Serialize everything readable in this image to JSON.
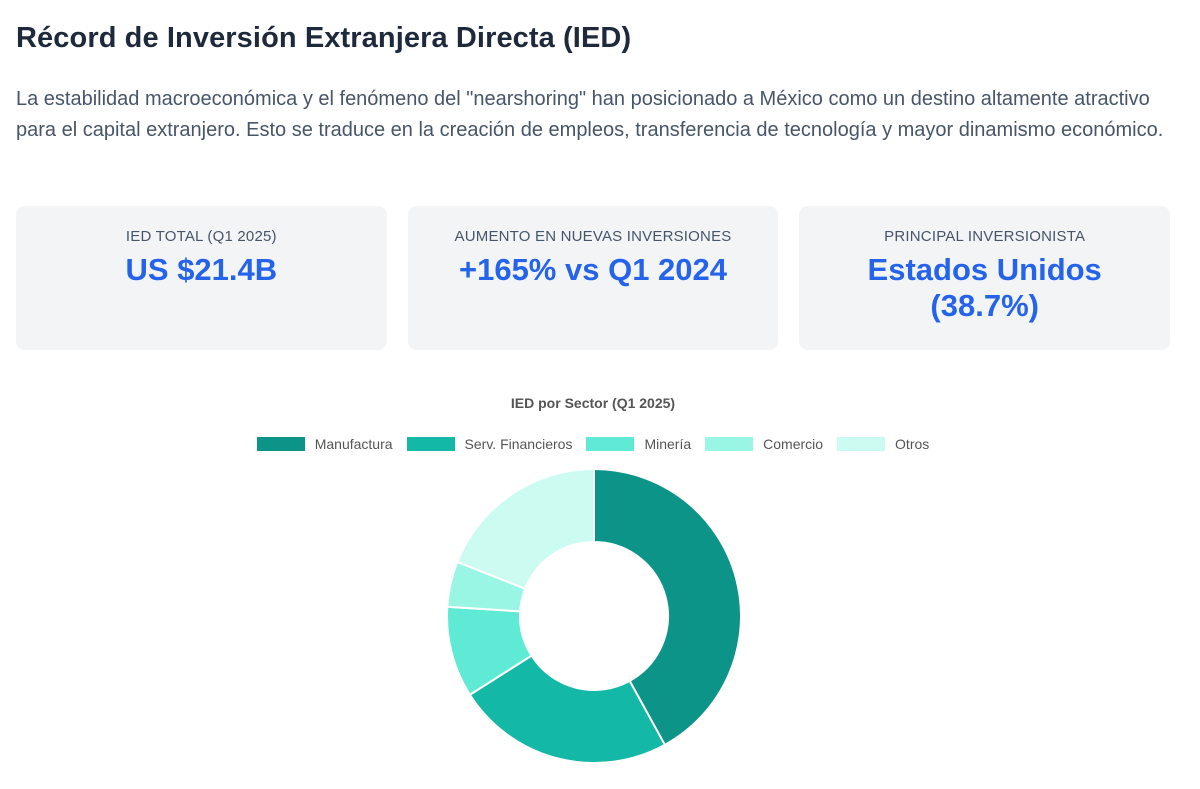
{
  "header": {
    "title": "Récord de Inversión Extranjera Directa (IED)",
    "description": "La estabilidad macroeconómica y el fenómeno del \"nearshoring\" han posicionado a México como un destino altamente atractivo para el capital extranjero. Esto se traduce en la creación de empleos, transferencia de tecnología y mayor dinamismo económico."
  },
  "stats": [
    {
      "label": "IED TOTAL (Q1 2025)",
      "value": "US $21.4B"
    },
    {
      "label": "AUMENTO EN NUEVAS INVERSIONES",
      "value": "+165% vs Q1 2024"
    },
    {
      "label": "PRINCIPAL INVERSIONISTA",
      "value": "Estados Unidos (38.7%)"
    }
  ],
  "colors": {
    "accent": "#2563eb",
    "card_bg": "#f3f4f6",
    "title": "#1e293b",
    "text": "#475569"
  },
  "chart_data": {
    "type": "pie",
    "title": "IED por Sector (Q1 2025)",
    "legend_position": "top",
    "categories": [
      "Manufactura",
      "Serv. Financieros",
      "Minería",
      "Comercio",
      "Otros"
    ],
    "values": [
      42,
      24,
      10,
      5,
      19
    ],
    "colors": [
      "#0d9488",
      "#14b8a6",
      "#5eead4",
      "#99f6e4",
      "#ccfbf1"
    ]
  }
}
